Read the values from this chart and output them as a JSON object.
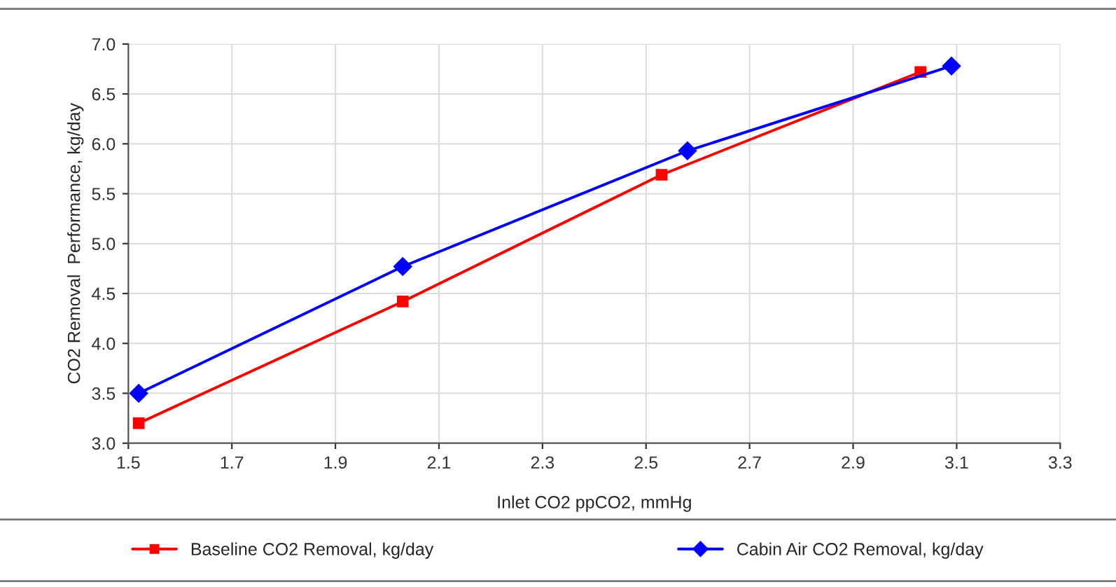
{
  "chart_data": {
    "type": "line",
    "xlabel": "Inlet CO2 ppCO2, mmHg",
    "ylabel": "CO2 Removal  Performance, kg/day",
    "xlim": [
      1.5,
      3.3
    ],
    "xticks": [
      1.5,
      1.7,
      1.9,
      2.1,
      2.3,
      2.5,
      2.7,
      2.9,
      3.1,
      3.3
    ],
    "ylim": [
      3.0,
      7.0
    ],
    "yticks": [
      {
        "value": 3.0,
        "label": "3.0"
      },
      3.5,
      {
        "value": 4.0,
        "label": "4.0"
      },
      4.5,
      {
        "value": 5.0,
        "label": "5.0"
      },
      5.5,
      {
        "value": 6.0,
        "label": "6.0"
      },
      6.5,
      {
        "value": 7.0,
        "label": "7.0"
      }
    ],
    "grid": true,
    "legend": "bottom",
    "line_style": "solid",
    "series": [
      {
        "name": "Baseline CO2 Removal, kg/day",
        "color": "#ff0000",
        "marker": "square",
        "x": [
          1.52,
          2.03,
          2.53,
          3.03
        ],
        "values": [
          3.2,
          4.42,
          5.69,
          6.72
        ]
      },
      {
        "name": "Cabin Air CO2 Removal, kg/day",
        "color": "#0000ff",
        "marker": "diamond",
        "x": [
          1.52,
          2.03,
          2.58,
          3.09
        ],
        "values": [
          3.5,
          4.77,
          5.93,
          6.78
        ]
      }
    ]
  }
}
